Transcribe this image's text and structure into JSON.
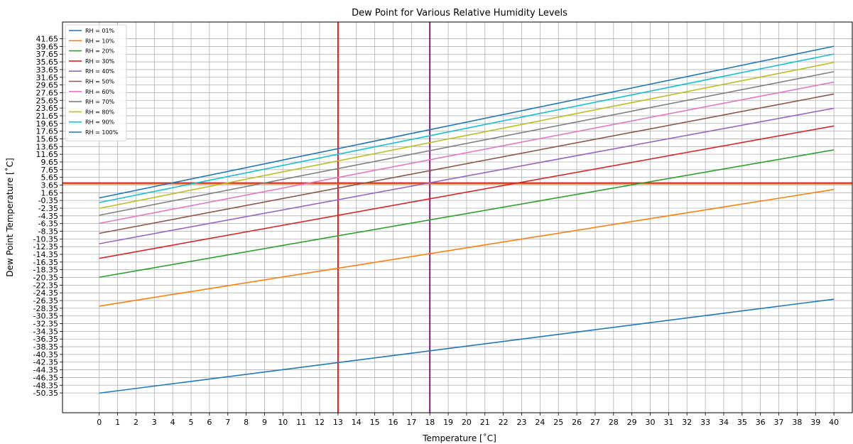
{
  "chart_data": {
    "type": "line",
    "title": "Dew Point for Various Relative Humidity Levels",
    "xlabel": "Temperature [$^\\circ$C]",
    "xlabel_display": "Temperature [˚C]",
    "ylabel_display": "Dew Point Temperature [˚C]",
    "xlim": [
      -2,
      41
    ],
    "ylim": [
      -55.5,
      46
    ],
    "grid": true,
    "legend_position": "top-left",
    "x": [
      0,
      40
    ],
    "x_ticks": [
      0,
      1,
      2,
      3,
      4,
      5,
      6,
      7,
      8,
      9,
      10,
      11,
      12,
      13,
      14,
      15,
      16,
      17,
      18,
      19,
      20,
      21,
      22,
      23,
      24,
      25,
      26,
      27,
      28,
      29,
      30,
      31,
      32,
      33,
      34,
      35,
      36,
      37,
      38,
      39,
      40
    ],
    "y_ticks": [
      41.65,
      39.65,
      37.65,
      35.65,
      33.65,
      31.65,
      29.65,
      27.65,
      25.65,
      23.65,
      21.65,
      19.65,
      17.65,
      15.65,
      13.65,
      11.65,
      9.65,
      7.65,
      5.65,
      3.65,
      1.65,
      -0.35,
      -2.35,
      -4.35,
      -6.35,
      -8.35,
      -10.35,
      -12.35,
      -14.35,
      -16.35,
      -18.35,
      -20.35,
      -22.35,
      -24.35,
      -26.35,
      -28.35,
      -30.35,
      -32.35,
      -34.35,
      -36.35,
      -38.35,
      -40.35,
      -42.35,
      -44.35,
      -46.35,
      -48.35,
      -50.35
    ],
    "y_tick_labels": [
      "41.65",
      "39.65",
      "37.65",
      "35.65",
      "33.65",
      "31.65",
      "29.65",
      "27.65",
      "25.65",
      "23.65",
      "21.65",
      "19.65",
      "17.65",
      "15.65",
      "13.65",
      "11.65",
      "9.65",
      "7.65",
      "5.65",
      "3.65",
      "1.65",
      "-0.35",
      "-2.35",
      "-4.35",
      "-6.35",
      "-8.35",
      "-10.35",
      "-12.35",
      "-14.35",
      "-16.35",
      "-18.35",
      "-20.35",
      "-22.35",
      "-24.35",
      "-26.35",
      "-28.35",
      "-30.35",
      "-32.35",
      "-34.35",
      "-36.35",
      "-38.35",
      "-40.35",
      "-42.35",
      "-44.35",
      "-46.35",
      "-48.35",
      "-50.35"
    ],
    "series": [
      {
        "name": "RH = 01%",
        "color": "#1f77b4",
        "y": [
          -50.4,
          -26.0
        ]
      },
      {
        "name": "RH = 10%",
        "color": "#ff7f0e",
        "y": [
          -27.8,
          2.5
        ]
      },
      {
        "name": "RH = 20%",
        "color": "#2ca02c",
        "y": [
          -20.3,
          12.8
        ]
      },
      {
        "name": "RH = 30%",
        "color": "#d62728",
        "y": [
          -15.4,
          19.0
        ]
      },
      {
        "name": "RH = 40%",
        "color": "#9467bd",
        "y": [
          -11.6,
          23.6
        ]
      },
      {
        "name": "RH = 50%",
        "color": "#8c564b",
        "y": [
          -8.9,
          27.3
        ]
      },
      {
        "name": "RH = 60%",
        "color": "#e377c2",
        "y": [
          -6.3,
          30.4
        ]
      },
      {
        "name": "RH = 70%",
        "color": "#7f7f7f",
        "y": [
          -4.2,
          33.1
        ]
      },
      {
        "name": "RH = 80%",
        "color": "#bcbd22",
        "y": [
          -2.4,
          35.5
        ]
      },
      {
        "name": "RH = 90%",
        "color": "#17becf",
        "y": [
          -0.9,
          37.7
        ]
      },
      {
        "name": "RH = 100%",
        "color": "#1f77b4",
        "y": [
          0.3,
          39.7
        ]
      }
    ],
    "reference_lines": [
      {
        "orientation": "vertical",
        "value": 13,
        "color": "#ff0000"
      },
      {
        "orientation": "vertical",
        "value": 18,
        "color": "#800080"
      },
      {
        "orientation": "horizontal",
        "value": 4.0,
        "color": "#ff7f0e"
      },
      {
        "orientation": "horizontal",
        "value": 4.2,
        "color": "#d62728"
      }
    ]
  }
}
